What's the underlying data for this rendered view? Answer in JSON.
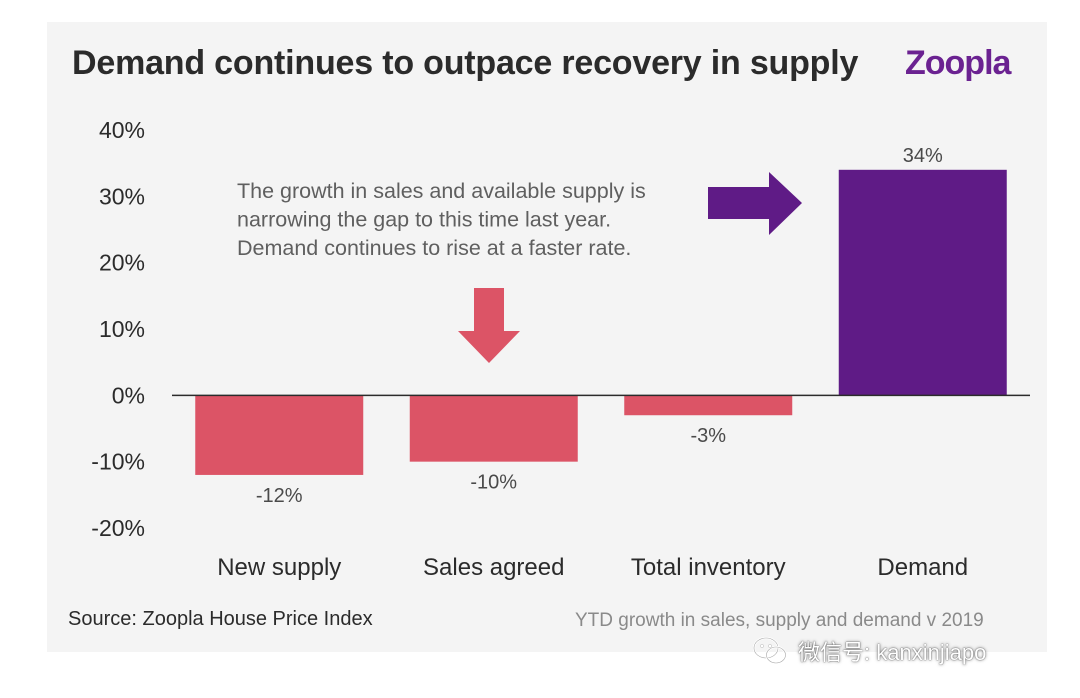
{
  "title": "Demand continues to outpace recovery in supply",
  "brand": "Zoopla",
  "source": "Source: Zoopla House Price Index",
  "subtitle": "YTD growth in sales, supply and demand v 2019",
  "annotation": [
    "The growth in sales and available supply is",
    "narrowing the gap to this time last year.",
    "Demand continues to rise at a faster rate."
  ],
  "watermark": {
    "icon": "wechat-icon",
    "text": "微信号: kanxinjiapo"
  },
  "colors": {
    "supply_bar": "#dc5466",
    "demand_bar": "#5f1b86",
    "arrow_down": "#dc5466",
    "arrow_right": "#5f1b86",
    "brand": "#6b2291",
    "background": "#f4f4f4"
  },
  "chart_data": {
    "type": "bar",
    "categories": [
      "New supply",
      "Sales agreed",
      "Total inventory",
      "Demand"
    ],
    "values": [
      -12,
      -10,
      -3,
      34
    ],
    "value_labels": [
      "-12%",
      "-10%",
      "-3%",
      "34%"
    ],
    "ylim": [
      -20,
      40
    ],
    "yticks": [
      40,
      30,
      20,
      10,
      0,
      -10,
      -20
    ],
    "ytick_labels": [
      "40%",
      "30%",
      "20%",
      "10%",
      "0%",
      "-10%",
      "-20%"
    ],
    "title": "Demand continues to outpace recovery in supply",
    "xlabel": "",
    "ylabel": "",
    "grid": false,
    "legend": "none"
  }
}
